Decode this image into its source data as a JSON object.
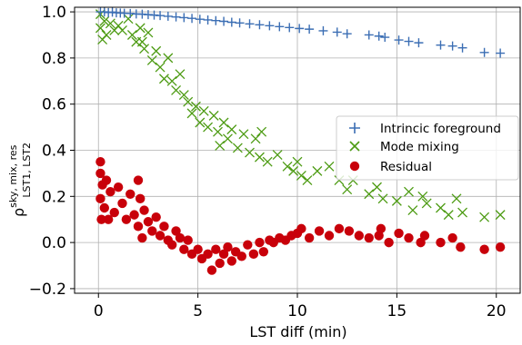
{
  "chart_data": {
    "type": "scatter",
    "xlabel": "LST diff (min)",
    "ylabel": "ρ",
    "ylabel_sup": "sky, mix, res",
    "ylabel_sub": "LST1, LST2",
    "xlim": [
      -1.2,
      21.2
    ],
    "ylim": [
      -0.22,
      1.02
    ],
    "xticks": [
      0,
      5,
      10,
      15,
      20
    ],
    "xtick_labels": [
      "0",
      "5",
      "10",
      "15",
      "20"
    ],
    "yticks": [
      -0.2,
      0.0,
      0.2,
      0.4,
      0.6,
      0.8,
      1.0
    ],
    "ytick_labels": [
      "−0.2",
      "0.0",
      "0.2",
      "0.4",
      "0.6",
      "0.8",
      "1.0"
    ],
    "grid": true,
    "legend_position": "center-right",
    "series": [
      {
        "name": "Intrincic foreground",
        "marker": "plus",
        "color": "#3b6eb4",
        "points": [
          [
            0.1,
            1.0
          ],
          [
            0.3,
            1.0
          ],
          [
            0.5,
            0.997
          ],
          [
            0.7,
            0.999
          ],
          [
            0.9,
            0.996
          ],
          [
            1.1,
            0.995
          ],
          [
            1.3,
            0.994
          ],
          [
            1.6,
            0.993
          ],
          [
            1.9,
            0.991
          ],
          [
            2.2,
            0.99
          ],
          [
            2.5,
            0.988
          ],
          [
            2.8,
            0.986
          ],
          [
            3.1,
            0.984
          ],
          [
            3.5,
            0.981
          ],
          [
            3.9,
            0.978
          ],
          [
            4.3,
            0.975
          ],
          [
            4.7,
            0.972
          ],
          [
            5.1,
            0.968
          ],
          [
            5.5,
            0.965
          ],
          [
            5.9,
            0.962
          ],
          [
            6.3,
            0.959
          ],
          [
            6.7,
            0.955
          ],
          [
            7.1,
            0.952
          ],
          [
            7.6,
            0.948
          ],
          [
            8.1,
            0.944
          ],
          [
            8.6,
            0.94
          ],
          [
            9.1,
            0.936
          ],
          [
            9.6,
            0.932
          ],
          [
            10.1,
            0.928
          ],
          [
            10.6,
            0.925
          ],
          [
            11.3,
            0.918
          ],
          [
            12.0,
            0.912
          ],
          [
            12.5,
            0.905
          ],
          [
            13.6,
            0.9
          ],
          [
            14.1,
            0.895
          ],
          [
            14.4,
            0.89
          ],
          [
            15.1,
            0.878
          ],
          [
            15.6,
            0.872
          ],
          [
            16.1,
            0.866
          ],
          [
            17.2,
            0.856
          ],
          [
            17.8,
            0.852
          ],
          [
            18.3,
            0.844
          ],
          [
            19.4,
            0.824
          ],
          [
            20.2,
            0.821
          ]
        ]
      },
      {
        "name": "Mode mixing",
        "marker": "x",
        "color": "#4d9b13",
        "points": [
          [
            0.1,
            0.99
          ],
          [
            0.1,
            0.93
          ],
          [
            0.2,
            0.88
          ],
          [
            0.3,
            0.96
          ],
          [
            0.4,
            0.9
          ],
          [
            0.6,
            0.95
          ],
          [
            0.8,
            0.92
          ],
          [
            1.0,
            0.94
          ],
          [
            1.2,
            0.92
          ],
          [
            1.5,
            0.97
          ],
          [
            1.7,
            0.9
          ],
          [
            1.9,
            0.87
          ],
          [
            2.1,
            0.93
          ],
          [
            2.2,
            0.87
          ],
          [
            2.3,
            0.84
          ],
          [
            2.5,
            0.91
          ],
          [
            2.7,
            0.79
          ],
          [
            2.9,
            0.83
          ],
          [
            3.1,
            0.76
          ],
          [
            3.3,
            0.71
          ],
          [
            3.5,
            0.8
          ],
          [
            3.7,
            0.7
          ],
          [
            3.9,
            0.66
          ],
          [
            4.1,
            0.73
          ],
          [
            4.3,
            0.64
          ],
          [
            4.5,
            0.61
          ],
          [
            4.7,
            0.56
          ],
          [
            4.9,
            0.59
          ],
          [
            5.1,
            0.52
          ],
          [
            5.3,
            0.57
          ],
          [
            5.5,
            0.5
          ],
          [
            5.8,
            0.55
          ],
          [
            6.0,
            0.48
          ],
          [
            6.1,
            0.42
          ],
          [
            6.3,
            0.52
          ],
          [
            6.5,
            0.45
          ],
          [
            6.7,
            0.49
          ],
          [
            7.0,
            0.41
          ],
          [
            7.3,
            0.47
          ],
          [
            7.6,
            0.39
          ],
          [
            7.9,
            0.45
          ],
          [
            8.1,
            0.37
          ],
          [
            8.2,
            0.48
          ],
          [
            8.5,
            0.35
          ],
          [
            9.0,
            0.38
          ],
          [
            9.5,
            0.33
          ],
          [
            9.8,
            0.31
          ],
          [
            10.0,
            0.35
          ],
          [
            10.2,
            0.29
          ],
          [
            10.5,
            0.27
          ],
          [
            11.0,
            0.31
          ],
          [
            11.6,
            0.33
          ],
          [
            12.1,
            0.27
          ],
          [
            12.5,
            0.23
          ],
          [
            12.8,
            0.27
          ],
          [
            13.6,
            0.21
          ],
          [
            14.0,
            0.24
          ],
          [
            14.3,
            0.19
          ],
          [
            15.0,
            0.18
          ],
          [
            15.6,
            0.22
          ],
          [
            15.8,
            0.14
          ],
          [
            16.3,
            0.2
          ],
          [
            16.5,
            0.17
          ],
          [
            17.2,
            0.15
          ],
          [
            17.6,
            0.12
          ],
          [
            18.0,
            0.19
          ],
          [
            18.3,
            0.13
          ],
          [
            19.4,
            0.11
          ],
          [
            20.2,
            0.12
          ]
        ]
      },
      {
        "name": "Residual",
        "marker": "circle",
        "color": "#c8000a",
        "points": [
          [
            0.1,
            0.35
          ],
          [
            0.1,
            0.3
          ],
          [
            0.1,
            0.19
          ],
          [
            0.15,
            0.1
          ],
          [
            0.2,
            0.25
          ],
          [
            0.3,
            0.15
          ],
          [
            0.4,
            0.27
          ],
          [
            0.5,
            0.1
          ],
          [
            0.6,
            0.22
          ],
          [
            0.8,
            0.13
          ],
          [
            1.0,
            0.24
          ],
          [
            1.2,
            0.17
          ],
          [
            1.4,
            0.1
          ],
          [
            1.6,
            0.21
          ],
          [
            1.8,
            0.12
          ],
          [
            2.0,
            0.27
          ],
          [
            2.0,
            0.07
          ],
          [
            2.1,
            0.19
          ],
          [
            2.2,
            0.02
          ],
          [
            2.3,
            0.14
          ],
          [
            2.5,
            0.09
          ],
          [
            2.7,
            0.05
          ],
          [
            2.9,
            0.11
          ],
          [
            3.1,
            0.03
          ],
          [
            3.3,
            0.07
          ],
          [
            3.5,
            0.01
          ],
          [
            3.7,
            -0.01
          ],
          [
            3.9,
            0.05
          ],
          [
            4.1,
            0.02
          ],
          [
            4.3,
            -0.03
          ],
          [
            4.5,
            0.01
          ],
          [
            4.7,
            -0.05
          ],
          [
            5.0,
            -0.03
          ],
          [
            5.2,
            -0.07
          ],
          [
            5.5,
            -0.05
          ],
          [
            5.7,
            -0.12
          ],
          [
            5.9,
            -0.03
          ],
          [
            6.1,
            -0.09
          ],
          [
            6.3,
            -0.05
          ],
          [
            6.5,
            -0.02
          ],
          [
            6.7,
            -0.08
          ],
          [
            6.9,
            -0.04
          ],
          [
            7.2,
            -0.06
          ],
          [
            7.5,
            -0.01
          ],
          [
            7.8,
            -0.05
          ],
          [
            8.1,
            0.0
          ],
          [
            8.3,
            -0.04
          ],
          [
            8.6,
            0.01
          ],
          [
            8.8,
            0.0
          ],
          [
            9.1,
            0.02
          ],
          [
            9.4,
            0.01
          ],
          [
            9.7,
            0.03
          ],
          [
            10.0,
            0.04
          ],
          [
            10.2,
            0.06
          ],
          [
            10.6,
            0.02
          ],
          [
            11.1,
            0.05
          ],
          [
            11.6,
            0.03
          ],
          [
            12.1,
            0.06
          ],
          [
            12.6,
            0.05
          ],
          [
            13.1,
            0.03
          ],
          [
            13.6,
            0.02
          ],
          [
            14.1,
            0.03
          ],
          [
            14.2,
            0.06
          ],
          [
            14.6,
            0.0
          ],
          [
            15.1,
            0.04
          ],
          [
            15.6,
            0.02
          ],
          [
            16.2,
            0.0
          ],
          [
            16.4,
            0.03
          ],
          [
            17.2,
            0.0
          ],
          [
            17.8,
            0.02
          ],
          [
            18.2,
            -0.02
          ],
          [
            19.4,
            -0.03
          ],
          [
            20.2,
            -0.02
          ]
        ]
      }
    ]
  }
}
